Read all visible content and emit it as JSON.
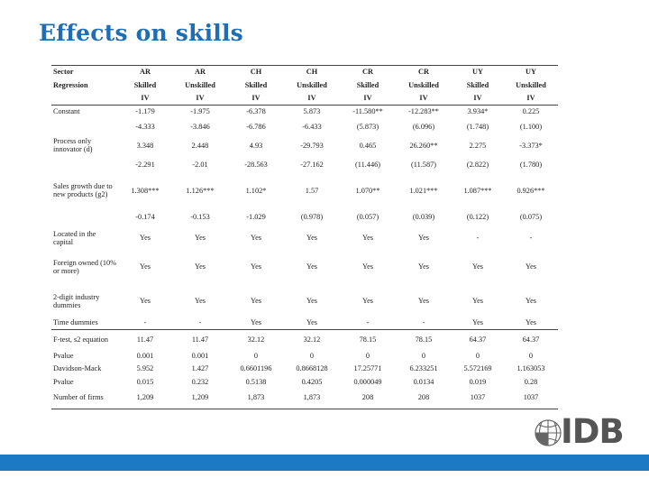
{
  "title": "Effects on skills",
  "table": {
    "header": [
      [
        "Sector",
        "AR",
        "AR",
        "CH",
        "CH",
        "CR",
        "CR",
        "UY",
        "UY"
      ],
      [
        "Regression",
        "Skilled",
        "Unskilled",
        "Skilled",
        "Unskilled",
        "Skilled",
        "Unskilled",
        "Skilled",
        "Unskilled"
      ],
      [
        "",
        "IV",
        "IV",
        "IV",
        "IV",
        "IV",
        "IV",
        "IV",
        "IV"
      ]
    ],
    "rows": [
      [
        "Constant",
        "-1.179",
        "-1.975",
        "-6.378",
        "5.873",
        "-11.580**",
        "-12.283**",
        "3.934*",
        "0.225"
      ],
      [
        "",
        "-4.333",
        "-3.846",
        "-6.786",
        "-6.433",
        "(5.873)",
        "(6.096)",
        "(1.748)",
        "(1.100)"
      ],
      [
        "Process only innovator (d)",
        "3.348",
        "2.448",
        "4.93",
        "-29.793",
        "0.465",
        "26.260**",
        "2.275",
        "-3.373*"
      ],
      [
        "",
        "-2.291",
        "-2.01",
        "-28.563",
        "-27.162",
        "(11.446)",
        "(11.587)",
        "(2.822)",
        "(1.780)"
      ],
      [
        "Sales growth due to new products (g2)",
        "1.308***",
        "1.126***",
        "1.102*",
        "1.57",
        "1.070**",
        "1.021***",
        "1.087***",
        "0.926***"
      ],
      [
        "",
        "-0.174",
        "-0.153",
        "-1.029",
        "(0.978)",
        "(0.057)",
        "(0.039)",
        "(0.122)",
        "(0.075)"
      ],
      [
        "Located in the capital",
        "Yes",
        "Yes",
        "Yes",
        "Yes",
        "Yes",
        "Yes",
        "-",
        "-"
      ],
      [
        "Foreign owned (10% or more)",
        "Yes",
        "Yes",
        "Yes",
        "Yes",
        "Yes",
        "Yes",
        "Yes",
        "Yes"
      ],
      [
        "2-digit industry dummies",
        "Yes",
        "Yes",
        "Yes",
        "Yes",
        "Yes",
        "Yes",
        "Yes",
        "Yes"
      ],
      [
        "Time dummies",
        "-",
        "-",
        "Yes",
        "Yes",
        "-",
        "-",
        "Yes",
        "Yes"
      ],
      [
        "F-test, s2 equation",
        "11.47",
        "11.47",
        "32.12",
        "32.12",
        "78.15",
        "78.15",
        "64.37",
        "64.37"
      ],
      [
        "Pvalue",
        "0.001",
        "0.001",
        "0",
        "0",
        "0",
        "0",
        "0",
        "0"
      ],
      [
        "Davidson-Mack",
        "5.952",
        "1.427",
        "0.6601196",
        "0.8668128",
        "17.25771",
        "6.233251",
        "5.572169",
        "1.163053"
      ],
      [
        "Pvalue",
        "0.015",
        "0.232",
        "0.5138",
        "0.4205",
        "0.000049",
        "0.0134",
        "0.019",
        "0.28"
      ],
      [
        "Number of firms",
        "1,209",
        "1,209",
        "1,873",
        "1,873",
        "208",
        "208",
        "1037",
        "1037"
      ]
    ]
  },
  "logo": {
    "text": "IDB",
    "icon": "idb-globe-icon"
  },
  "colors": {
    "title": "#1f6db4",
    "bar": "#1b7ac3",
    "logo": "#555555"
  }
}
